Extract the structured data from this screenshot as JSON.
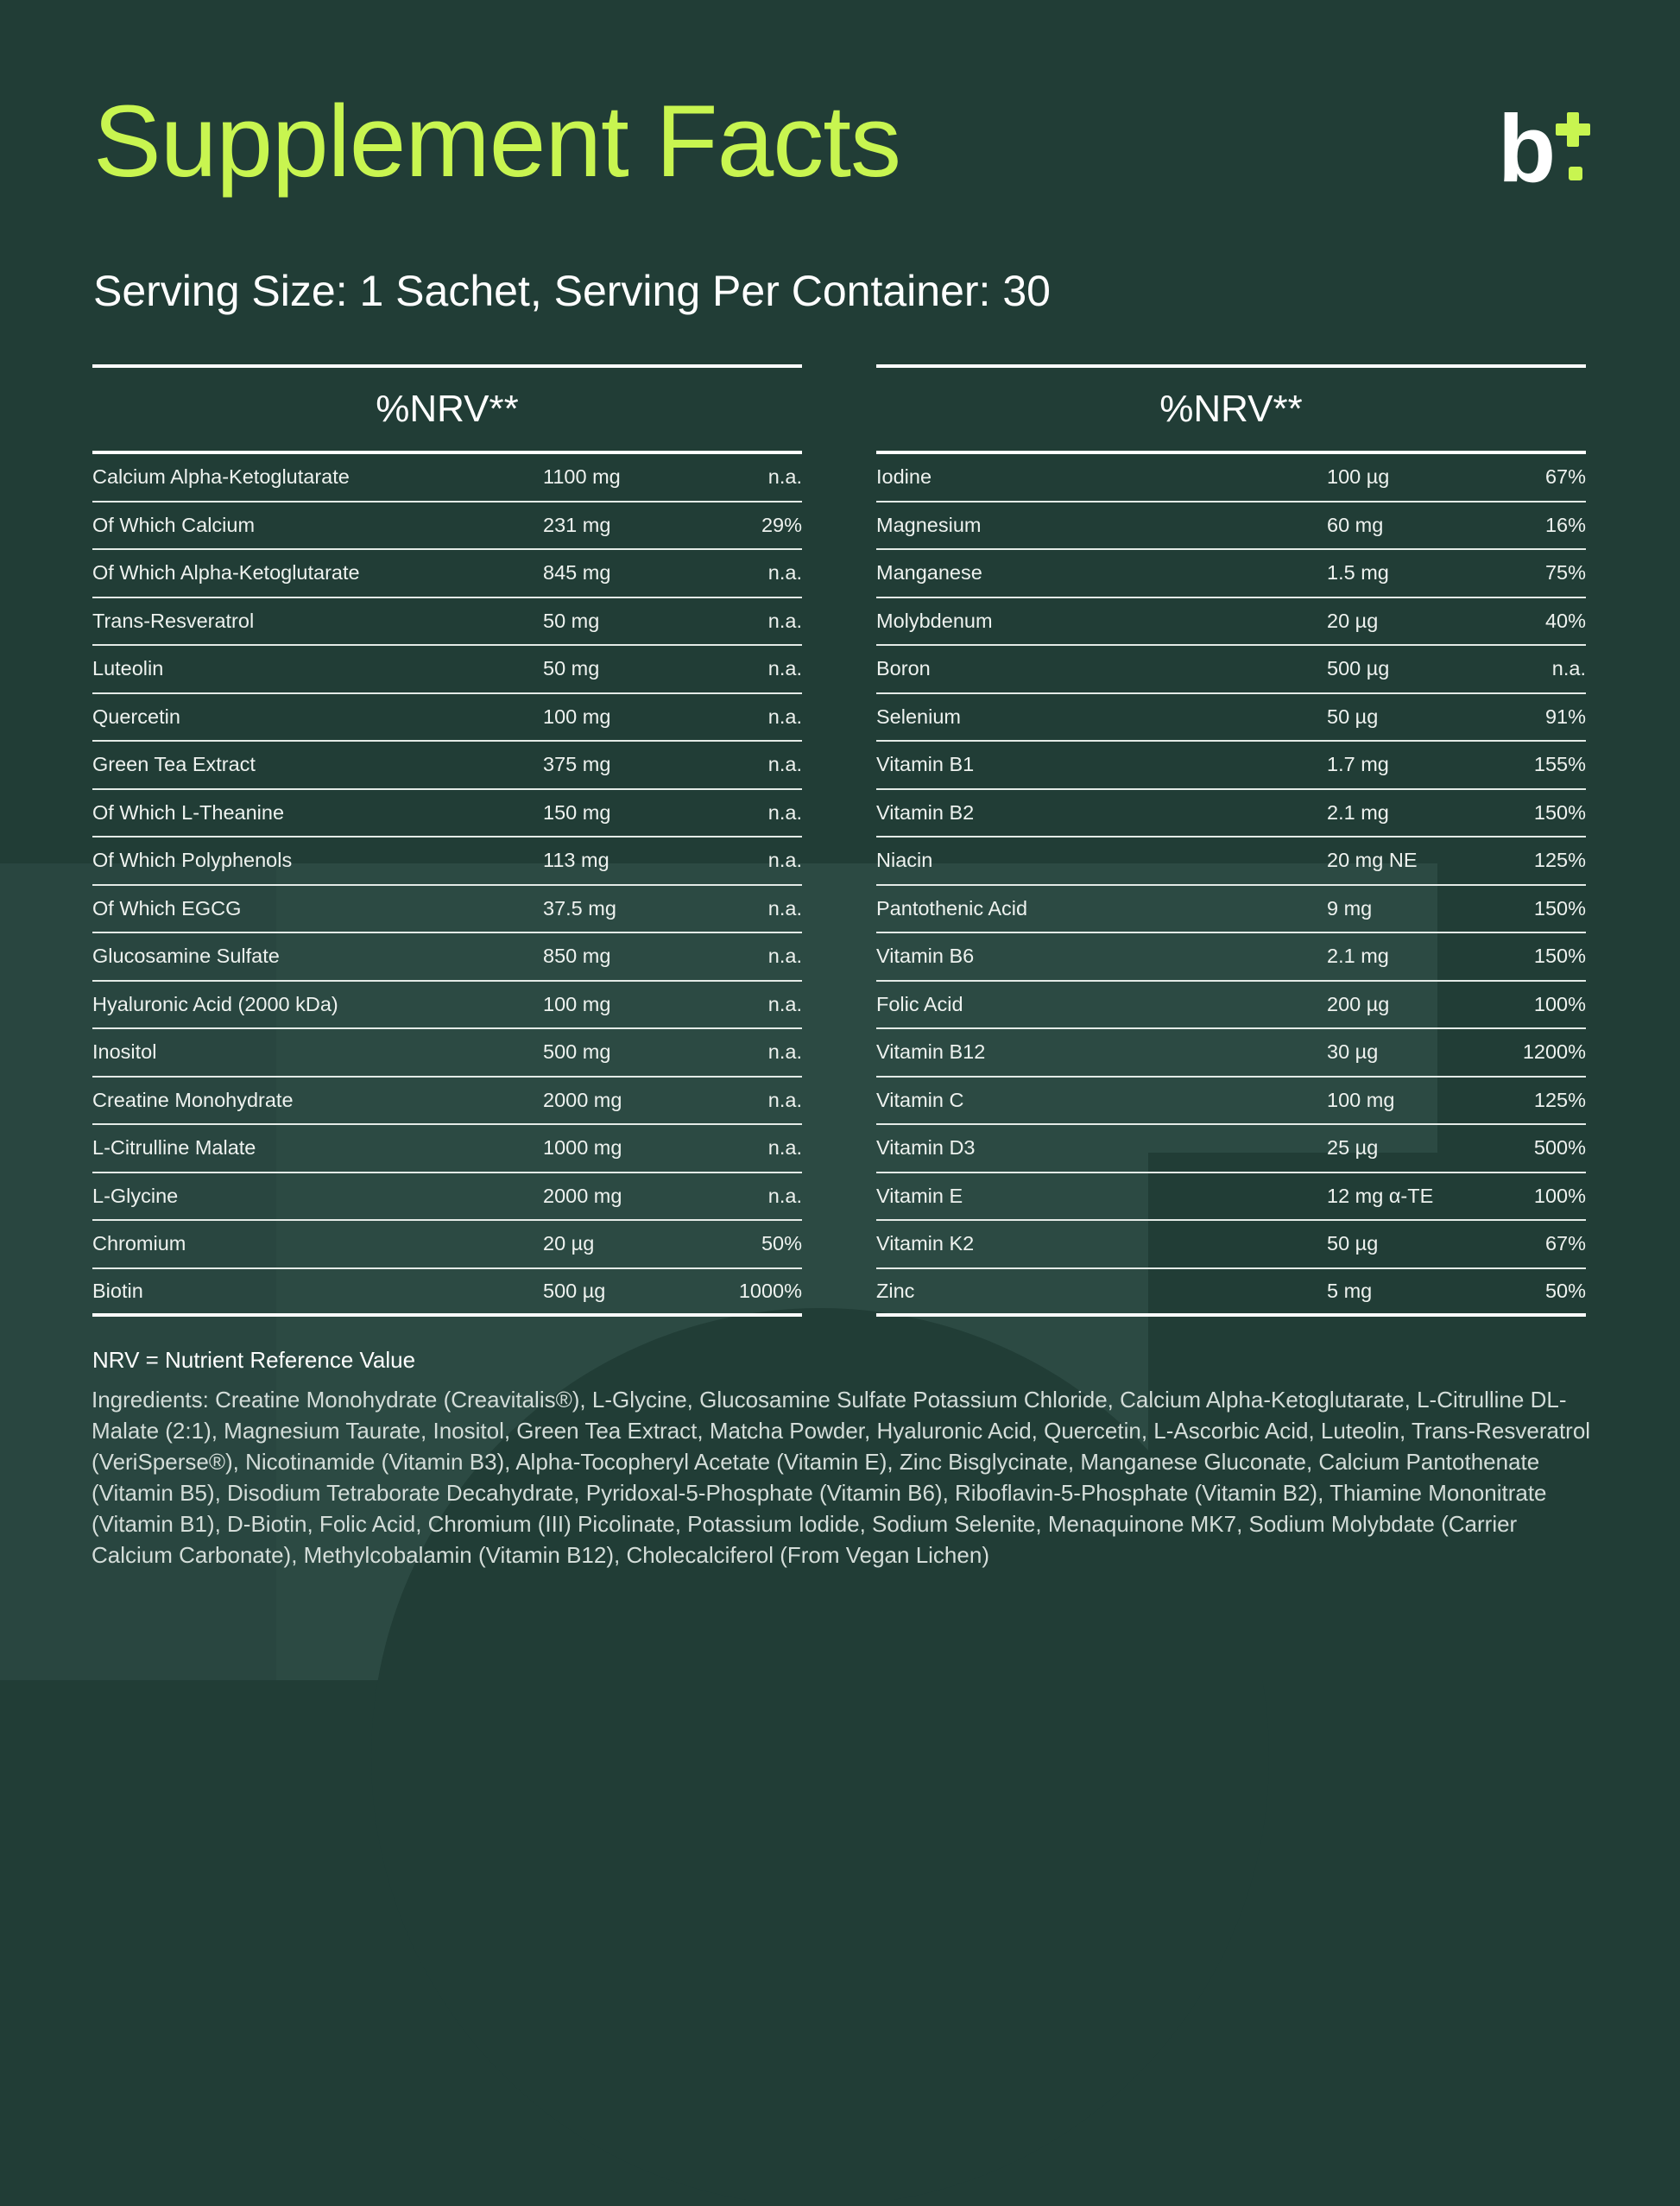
{
  "title": "Supplement Facts",
  "logo": {
    "text": "b",
    "accent_color": "#c8f550"
  },
  "serving": "Serving Size: 1 Sachet, Serving Per Container: 30",
  "tables": {
    "left": {
      "header": "%NRV**",
      "rows": [
        {
          "name": "Calcium Alpha-Ketoglutarate",
          "amount": "1100 mg",
          "nrv": "n.a."
        },
        {
          "name": "Of Which Calcium",
          "amount": "231 mg",
          "nrv": "29%"
        },
        {
          "name": "Of Which Alpha-Ketoglutarate",
          "amount": "845 mg",
          "nrv": "n.a."
        },
        {
          "name": "Trans-Resveratrol",
          "amount": "50 mg",
          "nrv": "n.a."
        },
        {
          "name": "Luteolin",
          "amount": "50 mg",
          "nrv": "n.a."
        },
        {
          "name": "Quercetin",
          "amount": "100 mg",
          "nrv": "n.a."
        },
        {
          "name": "Green Tea Extract",
          "amount": "375 mg",
          "nrv": "n.a."
        },
        {
          "name": "Of Which L-Theanine",
          "amount": "150 mg",
          "nrv": "n.a."
        },
        {
          "name": "Of Which Polyphenols",
          "amount": "113 mg",
          "nrv": "n.a."
        },
        {
          "name": "Of Which EGCG",
          "amount": "37.5 mg",
          "nrv": "n.a."
        },
        {
          "name": "Glucosamine Sulfate",
          "amount": "850 mg",
          "nrv": "n.a."
        },
        {
          "name": "Hyaluronic Acid (2000 kDa)",
          "amount": "100 mg",
          "nrv": "n.a."
        },
        {
          "name": "Inositol",
          "amount": "500 mg",
          "nrv": "n.a."
        },
        {
          "name": "Creatine Monohydrate",
          "amount": "2000 mg",
          "nrv": "n.a."
        },
        {
          "name": "L-Citrulline Malate",
          "amount": "1000 mg",
          "nrv": "n.a."
        },
        {
          "name": "L-Glycine",
          "amount": "2000 mg",
          "nrv": "n.a."
        },
        {
          "name": "Chromium",
          "amount": "20 µg",
          "nrv": "50%"
        },
        {
          "name": "Biotin",
          "amount": "500 µg",
          "nrv": "1000%"
        }
      ]
    },
    "right": {
      "header": "%NRV**",
      "rows": [
        {
          "name": "Iodine",
          "amount": "100 µg",
          "nrv": "67%"
        },
        {
          "name": "Magnesium",
          "amount": "60 mg",
          "nrv": "16%"
        },
        {
          "name": "Manganese",
          "amount": "1.5 mg",
          "nrv": "75%"
        },
        {
          "name": "Molybdenum",
          "amount": "20 µg",
          "nrv": "40%"
        },
        {
          "name": "Boron",
          "amount": "500 µg",
          "nrv": "n.a."
        },
        {
          "name": "Selenium",
          "amount": "50 µg",
          "nrv": "91%"
        },
        {
          "name": "Vitamin B1",
          "amount": "1.7 mg",
          "nrv": "155%"
        },
        {
          "name": "Vitamin B2",
          "amount": "2.1 mg",
          "nrv": "150%"
        },
        {
          "name": "Niacin",
          "amount": "20 mg NE",
          "nrv": "125%"
        },
        {
          "name": "Pantothenic Acid",
          "amount": "9 mg",
          "nrv": "150%"
        },
        {
          "name": "Vitamin B6",
          "amount": "2.1 mg",
          "nrv": "150%"
        },
        {
          "name": "Folic Acid",
          "amount": "200 µg",
          "nrv": "100%"
        },
        {
          "name": "Vitamin B12",
          "amount": "30 µg",
          "nrv": "1200%"
        },
        {
          "name": "Vitamin C",
          "amount": "100 mg",
          "nrv": "125%"
        },
        {
          "name": "Vitamin D3",
          "amount": "25 µg",
          "nrv": "500%"
        },
        {
          "name": "Vitamin E",
          "amount": "12 mg α-TE",
          "nrv": "100%"
        },
        {
          "name": "Vitamin K2",
          "amount": "50 µg",
          "nrv": "67%"
        },
        {
          "name": "Zinc",
          "amount": "5 mg",
          "nrv": "50%"
        }
      ]
    }
  },
  "nrv_note": "NRV = Nutrient Reference Value",
  "ingredients": "Ingredients: Creatine Monohydrate (Creavitalis®), L-Glycine, Glucosamine Sulfate Potassium Chloride, Calcium Alpha-Ketoglutarate, L-Citrulline DL-Malate (2:1), Magnesium Taurate, Inositol, Green Tea Extract, Matcha Powder, Hyaluronic Acid, Quercetin, L-Ascorbic Acid, Luteolin, Trans-Resveratrol (VeriSperse®), Nicotinamide (Vitamin B3), Alpha-Tocopheryl Acetate (Vitamin E), Zinc Bisglycinate, Manganese Gluconate, Calcium Pantothenate (Vitamin B5), Disodium Tetraborate Decahydrate, Pyridoxal-5-Phosphate (Vitamin B6), Riboflavin-5-Phosphate (Vitamin B2), Thiamine Mononitrate (Vitamin B1), D-Biotin, Folic Acid, Chromium (III) Picolinate, Potassium Iodide, Sodium Selenite, Menaquinone MK7, Sodium Molybdate (Carrier Calcium Carbonate), Methylcobalamin (Vitamin B12), Cholecalciferol (From Vegan Lichen)"
}
